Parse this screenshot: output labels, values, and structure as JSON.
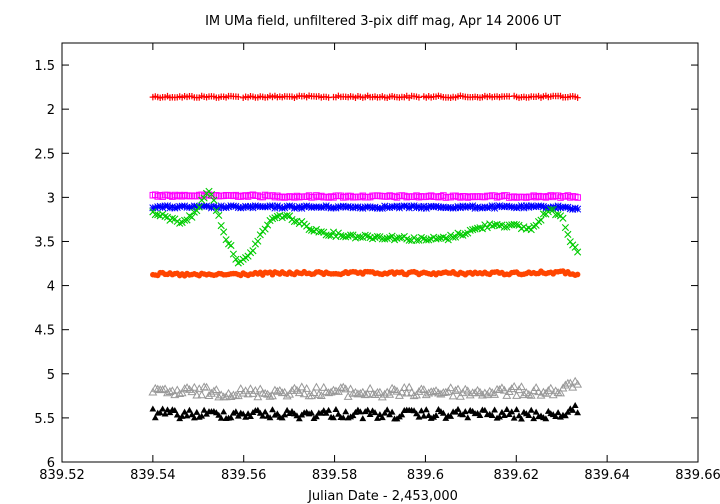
{
  "chart_data": {
    "type": "scatter",
    "title": "IM UMa field, unfiltered 3-pix diff mag, Apr 14 2006 UT",
    "xlabel": "Julian Date - 2,453,000",
    "ylabel": "",
    "xlim": [
      839.52,
      839.66
    ],
    "ylim": [
      6,
      1.25
    ],
    "y_inverted": true,
    "grid": false,
    "legend": "none",
    "x_ticks": [
      "839.52",
      "839.54",
      "839.56",
      "839.58",
      "839.6",
      "839.62",
      "839.64",
      "839.66"
    ],
    "y_ticks": [
      "1.5",
      "2",
      "2.5",
      "3",
      "3.5",
      "4",
      "4.5",
      "5",
      "5.5",
      "6"
    ],
    "x_range_observed": [
      839.54,
      839.6335
    ],
    "series": [
      {
        "marker": "plus",
        "color": "#ff0000",
        "x": [
          839.54,
          839.55,
          839.56,
          839.57,
          839.58,
          839.59,
          839.6,
          839.61,
          839.62,
          839.63,
          839.6335
        ],
        "y": [
          1.86,
          1.86,
          1.86,
          1.86,
          1.86,
          1.86,
          1.86,
          1.86,
          1.86,
          1.86,
          1.86
        ]
      },
      {
        "marker": "open-square",
        "color": "#ff00ff",
        "x": [
          839.54,
          839.55,
          839.56,
          839.57,
          839.58,
          839.59,
          839.6,
          839.61,
          839.62,
          839.63,
          839.6335
        ],
        "y": [
          2.98,
          2.98,
          2.98,
          2.99,
          2.99,
          2.99,
          2.99,
          2.99,
          2.99,
          2.99,
          2.99
        ]
      },
      {
        "marker": "asterisk",
        "color": "#0000ff",
        "x": [
          839.54,
          839.55,
          839.56,
          839.57,
          839.58,
          839.59,
          839.6,
          839.61,
          839.62,
          839.63,
          839.6335
        ],
        "y": [
          3.11,
          3.11,
          3.11,
          3.11,
          3.11,
          3.11,
          3.11,
          3.11,
          3.11,
          3.11,
          3.13
        ]
      },
      {
        "marker": "x",
        "color": "#00cc00",
        "x": [
          839.54,
          839.543,
          839.546,
          839.549,
          839.5525,
          839.556,
          839.559,
          839.561,
          839.5635,
          839.566,
          839.569,
          839.572,
          839.576,
          839.58,
          839.585,
          839.59,
          839.595,
          839.6,
          839.605,
          839.61,
          839.615,
          839.62,
          839.6235,
          839.626,
          839.6275,
          839.63,
          839.632,
          839.6335
        ],
        "y": [
          3.18,
          3.23,
          3.28,
          3.2,
          2.9,
          3.45,
          3.75,
          3.68,
          3.45,
          3.25,
          3.2,
          3.28,
          3.38,
          3.42,
          3.44,
          3.45,
          3.46,
          3.48,
          3.46,
          3.38,
          3.3,
          3.33,
          3.36,
          3.2,
          3.15,
          3.2,
          3.5,
          3.6
        ]
      },
      {
        "marker": "filled-circle",
        "color": "#ff4500",
        "x": [
          839.54,
          839.55,
          839.56,
          839.57,
          839.58,
          839.59,
          839.6,
          839.61,
          839.62,
          839.63,
          839.6335
        ],
        "y": [
          3.87,
          3.88,
          3.87,
          3.86,
          3.86,
          3.86,
          3.86,
          3.86,
          3.86,
          3.85,
          3.87
        ]
      },
      {
        "marker": "open-triangle",
        "color": "#999999",
        "x": [
          839.54,
          839.55,
          839.56,
          839.57,
          839.58,
          839.59,
          839.6,
          839.61,
          839.62,
          839.63,
          839.6335
        ],
        "y": [
          5.22,
          5.2,
          5.22,
          5.2,
          5.2,
          5.22,
          5.2,
          5.21,
          5.2,
          5.2,
          5.08
        ]
      },
      {
        "marker": "filled-triangle",
        "color": "#000000",
        "x": [
          839.54,
          839.55,
          839.56,
          839.57,
          839.58,
          839.59,
          839.6,
          839.61,
          839.62,
          839.63,
          839.6335
        ],
        "y": [
          5.45,
          5.46,
          5.45,
          5.46,
          5.45,
          5.46,
          5.46,
          5.45,
          5.46,
          5.46,
          5.4
        ]
      }
    ]
  }
}
